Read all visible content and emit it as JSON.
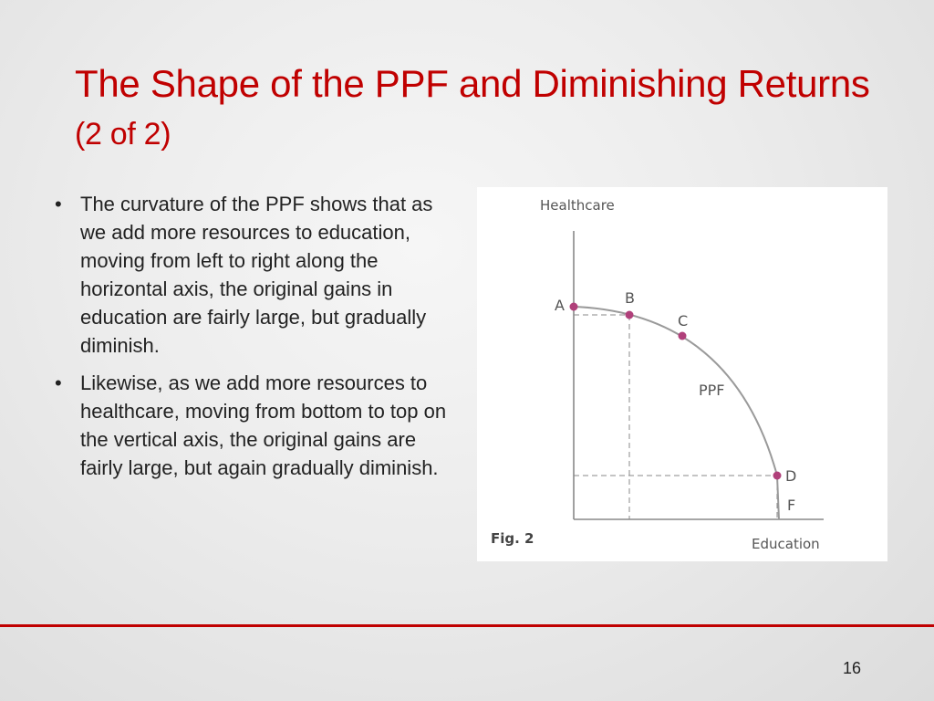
{
  "slide": {
    "title_main": "The Shape of the PPF and Diminishing Returns",
    "title_suffix": "(2 of 2)",
    "bullets": [
      "The curvature of the PPF shows that as we add more resources to education, moving from left to right along the horizontal axis, the original gains in education are fairly large, but gradually diminish.",
      "Likewise, as we add more resources to healthcare, moving from bottom to top on the vertical axis, the original gains are fairly large, but again gradually diminish."
    ],
    "page_number": "16",
    "accent_color": "#c00000"
  },
  "figure": {
    "y_axis_label": "Healthcare",
    "x_axis_label": "Education",
    "curve_label": "PPF",
    "caption": "Fig. 2",
    "points": [
      "A",
      "B",
      "C",
      "D",
      "F"
    ],
    "point_color": "#b0407a",
    "curve_color": "#9a9a9a"
  }
}
